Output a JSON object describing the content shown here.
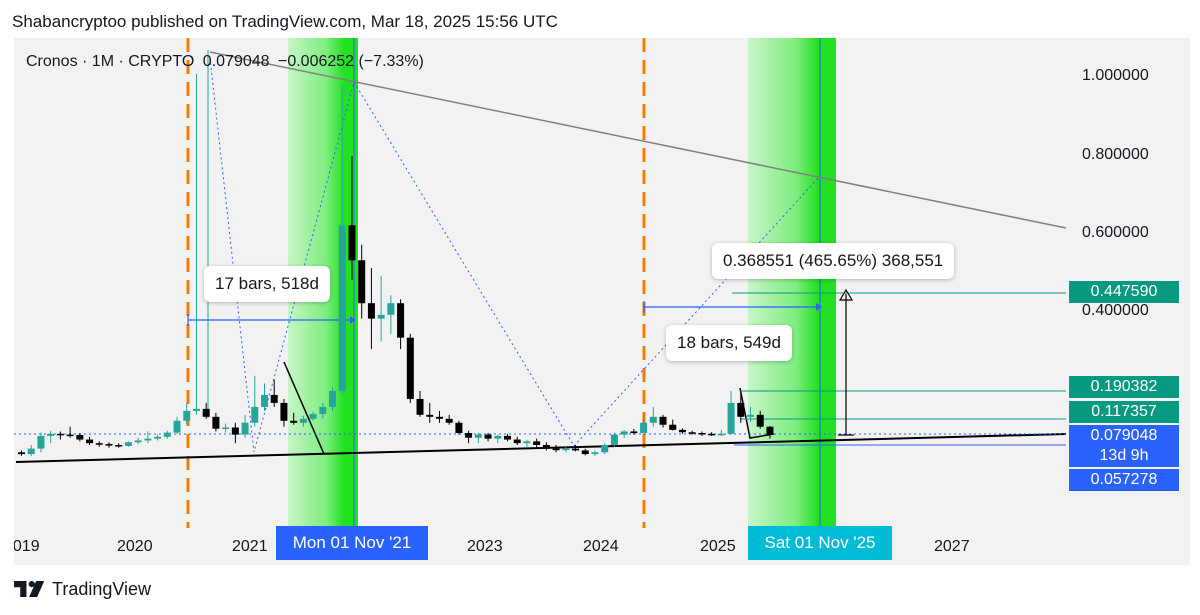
{
  "header": {
    "publish_text": "Shabancryptoo published on TradingView.com, Mar 18, 2025 15:56 UTC"
  },
  "legend": {
    "symbol": "Cronos · 1M · CRYPTO",
    "price": "0.079048",
    "change": "−0.006252 (−7.33%)"
  },
  "annotations": {
    "bars1": "17 bars, 518d",
    "bars2": "18 bars, 549d",
    "measure": "0.368551 (465.65%) 368,551"
  },
  "price_axis": [
    "1.000000",
    "0.800000",
    "0.600000",
    "0.400000"
  ],
  "price_tags": {
    "target": "0.447590",
    "level1": "0.190382",
    "level2": "0.117357",
    "current": "0.079048",
    "countdown": "13d 9h",
    "low": "0.057278"
  },
  "date_axis": [
    "2019",
    "2020",
    "2021",
    "2023",
    "2024",
    "2025",
    "2027"
  ],
  "date_tags": {
    "left": "Mon 01 Nov '21",
    "right": "Sat 01 Nov '25"
  },
  "footer": {
    "brand": "TradingView"
  },
  "colors": {
    "up": "#26a69a",
    "down": "#000000",
    "orange": "#f57c00",
    "green_zone": "#22e022",
    "teal_tag": "#089981",
    "blue_tag": "#2962ff",
    "cyan_tag": "#00bcd4"
  },
  "chart_data": {
    "type": "candlestick",
    "title": "Cronos · 1M · CRYPTO",
    "y_labels": [
      1.0,
      0.8,
      0.6,
      0.4
    ],
    "last_price": 0.079048,
    "price_levels": [
      0.44759,
      0.190382,
      0.117357,
      0.079048,
      0.057278
    ],
    "measure_change": {
      "value": 0.368551,
      "percent": 465.65,
      "ticks": 368551
    },
    "bar_counts": [
      {
        "bars": 17,
        "days": 518
      },
      {
        "bars": 18,
        "days": 549
      }
    ],
    "series": [
      {
        "name": "Cronos",
        "candles": [
          {
            "o": 0.06,
            "h": 0.062,
            "l": 0.055,
            "c": 0.058,
            "up": false
          },
          {
            "o": 0.058,
            "h": 0.068,
            "l": 0.054,
            "c": 0.064,
            "up": true
          },
          {
            "o": 0.064,
            "h": 0.085,
            "l": 0.06,
            "c": 0.078,
            "up": true
          },
          {
            "o": 0.078,
            "h": 0.09,
            "l": 0.07,
            "c": 0.082,
            "up": true
          },
          {
            "o": 0.082,
            "h": 0.088,
            "l": 0.074,
            "c": 0.08,
            "up": false
          },
          {
            "o": 0.08,
            "h": 0.1,
            "l": 0.076,
            "c": 0.079,
            "up": false
          },
          {
            "o": 0.079,
            "h": 0.084,
            "l": 0.072,
            "c": 0.074,
            "up": false
          },
          {
            "o": 0.074,
            "h": 0.077,
            "l": 0.068,
            "c": 0.07,
            "up": false
          },
          {
            "o": 0.07,
            "h": 0.072,
            "l": 0.066,
            "c": 0.069,
            "up": false
          },
          {
            "o": 0.069,
            "h": 0.071,
            "l": 0.065,
            "c": 0.068,
            "up": false
          },
          {
            "o": 0.068,
            "h": 0.07,
            "l": 0.065,
            "c": 0.067,
            "up": false
          },
          {
            "o": 0.067,
            "h": 0.072,
            "l": 0.066,
            "c": 0.071,
            "up": true
          },
          {
            "o": 0.071,
            "h": 0.076,
            "l": 0.069,
            "c": 0.073,
            "up": true
          },
          {
            "o": 0.073,
            "h": 0.088,
            "l": 0.07,
            "c": 0.075,
            "up": true
          },
          {
            "o": 0.075,
            "h": 0.08,
            "l": 0.073,
            "c": 0.077,
            "up": true
          },
          {
            "o": 0.077,
            "h": 0.09,
            "l": 0.075,
            "c": 0.085,
            "up": true
          },
          {
            "o": 0.085,
            "h": 0.125,
            "l": 0.082,
            "c": 0.115,
            "up": true
          },
          {
            "o": 0.115,
            "h": 0.16,
            "l": 0.105,
            "c": 0.14,
            "up": true
          },
          {
            "o": 0.14,
            "h": 1.01,
            "l": 0.13,
            "c": 0.145,
            "up": true
          },
          {
            "o": 0.145,
            "h": 0.16,
            "l": 0.12,
            "c": 0.125,
            "up": false
          },
          {
            "o": 0.125,
            "h": 0.135,
            "l": 0.088,
            "c": 0.095,
            "up": false
          },
          {
            "o": 0.095,
            "h": 0.108,
            "l": 0.085,
            "c": 0.098,
            "up": true
          },
          {
            "o": 0.098,
            "h": 0.11,
            "l": 0.07,
            "c": 0.08,
            "up": false
          },
          {
            "o": 0.08,
            "h": 0.13,
            "l": 0.076,
            "c": 0.11,
            "up": true
          },
          {
            "o": 0.11,
            "h": 0.23,
            "l": 0.1,
            "c": 0.15,
            "up": true
          },
          {
            "o": 0.15,
            "h": 0.21,
            "l": 0.14,
            "c": 0.18,
            "up": true
          },
          {
            "o": 0.18,
            "h": 0.22,
            "l": 0.15,
            "c": 0.16,
            "up": false
          },
          {
            "o": 0.16,
            "h": 0.17,
            "l": 0.1,
            "c": 0.115,
            "up": false
          },
          {
            "o": 0.115,
            "h": 0.135,
            "l": 0.105,
            "c": 0.11,
            "up": false
          },
          {
            "o": 0.11,
            "h": 0.128,
            "l": 0.1,
            "c": 0.12,
            "up": true
          },
          {
            "o": 0.12,
            "h": 0.138,
            "l": 0.115,
            "c": 0.132,
            "up": true
          },
          {
            "o": 0.132,
            "h": 0.16,
            "l": 0.12,
            "c": 0.15,
            "up": true
          },
          {
            "o": 0.15,
            "h": 0.2,
            "l": 0.14,
            "c": 0.19,
            "up": true
          },
          {
            "o": 0.19,
            "h": 0.98,
            "l": 0.18,
            "c": 0.62,
            "up": true
          },
          {
            "o": 0.62,
            "h": 0.8,
            "l": 0.48,
            "c": 0.53,
            "up": false
          },
          {
            "o": 0.53,
            "h": 0.57,
            "l": 0.38,
            "c": 0.42,
            "up": false
          },
          {
            "o": 0.42,
            "h": 0.51,
            "l": 0.3,
            "c": 0.38,
            "up": false
          },
          {
            "o": 0.38,
            "h": 0.49,
            "l": 0.32,
            "c": 0.39,
            "up": true
          },
          {
            "o": 0.39,
            "h": 0.44,
            "l": 0.34,
            "c": 0.42,
            "up": true
          },
          {
            "o": 0.42,
            "h": 0.43,
            "l": 0.3,
            "c": 0.33,
            "up": false
          },
          {
            "o": 0.33,
            "h": 0.34,
            "l": 0.16,
            "c": 0.17,
            "up": false
          },
          {
            "o": 0.17,
            "h": 0.19,
            "l": 0.125,
            "c": 0.13,
            "up": false
          },
          {
            "o": 0.13,
            "h": 0.16,
            "l": 0.11,
            "c": 0.125,
            "up": false
          },
          {
            "o": 0.125,
            "h": 0.14,
            "l": 0.11,
            "c": 0.12,
            "up": false
          },
          {
            "o": 0.12,
            "h": 0.13,
            "l": 0.105,
            "c": 0.11,
            "up": false
          },
          {
            "o": 0.11,
            "h": 0.115,
            "l": 0.08,
            "c": 0.084,
            "up": false
          },
          {
            "o": 0.084,
            "h": 0.09,
            "l": 0.07,
            "c": 0.076,
            "up": false
          },
          {
            "o": 0.076,
            "h": 0.085,
            "l": 0.07,
            "c": 0.08,
            "up": true
          },
          {
            "o": 0.08,
            "h": 0.084,
            "l": 0.072,
            "c": 0.075,
            "up": false
          },
          {
            "o": 0.075,
            "h": 0.08,
            "l": 0.07,
            "c": 0.078,
            "up": true
          },
          {
            "o": 0.078,
            "h": 0.082,
            "l": 0.072,
            "c": 0.074,
            "up": false
          },
          {
            "o": 0.074,
            "h": 0.077,
            "l": 0.068,
            "c": 0.07,
            "up": false
          },
          {
            "o": 0.07,
            "h": 0.074,
            "l": 0.066,
            "c": 0.072,
            "up": true
          },
          {
            "o": 0.072,
            "h": 0.075,
            "l": 0.065,
            "c": 0.068,
            "up": false
          },
          {
            "o": 0.068,
            "h": 0.071,
            "l": 0.062,
            "c": 0.064,
            "up": false
          },
          {
            "o": 0.064,
            "h": 0.068,
            "l": 0.06,
            "c": 0.063,
            "up": false
          },
          {
            "o": 0.063,
            "h": 0.066,
            "l": 0.06,
            "c": 0.064,
            "up": true
          },
          {
            "o": 0.064,
            "h": 0.068,
            "l": 0.061,
            "c": 0.062,
            "up": false
          },
          {
            "o": 0.062,
            "h": 0.064,
            "l": 0.056,
            "c": 0.058,
            "up": false
          },
          {
            "o": 0.058,
            "h": 0.062,
            "l": 0.055,
            "c": 0.06,
            "up": true
          },
          {
            "o": 0.06,
            "h": 0.07,
            "l": 0.058,
            "c": 0.068,
            "up": true
          },
          {
            "o": 0.068,
            "h": 0.085,
            "l": 0.066,
            "c": 0.08,
            "up": true
          },
          {
            "o": 0.08,
            "h": 0.092,
            "l": 0.076,
            "c": 0.088,
            "up": true
          },
          {
            "o": 0.088,
            "h": 0.094,
            "l": 0.08,
            "c": 0.084,
            "up": false
          },
          {
            "o": 0.084,
            "h": 0.13,
            "l": 0.082,
            "c": 0.11,
            "up": true
          },
          {
            "o": 0.11,
            "h": 0.15,
            "l": 0.1,
            "c": 0.125,
            "up": true
          },
          {
            "o": 0.125,
            "h": 0.13,
            "l": 0.098,
            "c": 0.105,
            "up": false
          },
          {
            "o": 0.105,
            "h": 0.118,
            "l": 0.09,
            "c": 0.092,
            "up": false
          },
          {
            "o": 0.092,
            "h": 0.096,
            "l": 0.082,
            "c": 0.086,
            "up": false
          },
          {
            "o": 0.086,
            "h": 0.09,
            "l": 0.08,
            "c": 0.084,
            "up": false
          },
          {
            "o": 0.084,
            "h": 0.088,
            "l": 0.078,
            "c": 0.082,
            "up": false
          },
          {
            "o": 0.082,
            "h": 0.086,
            "l": 0.078,
            "c": 0.08,
            "up": false
          },
          {
            "o": 0.08,
            "h": 0.092,
            "l": 0.078,
            "c": 0.082,
            "up": true
          },
          {
            "o": 0.082,
            "h": 0.19,
            "l": 0.08,
            "c": 0.16,
            "up": true
          },
          {
            "o": 0.16,
            "h": 0.19,
            "l": 0.11,
            "c": 0.125,
            "up": false
          },
          {
            "o": 0.125,
            "h": 0.15,
            "l": 0.112,
            "c": 0.13,
            "up": true
          },
          {
            "o": 0.13,
            "h": 0.14,
            "l": 0.095,
            "c": 0.1,
            "up": false
          },
          {
            "o": 0.1,
            "h": 0.102,
            "l": 0.075,
            "c": 0.079,
            "up": false
          }
        ]
      }
    ]
  }
}
